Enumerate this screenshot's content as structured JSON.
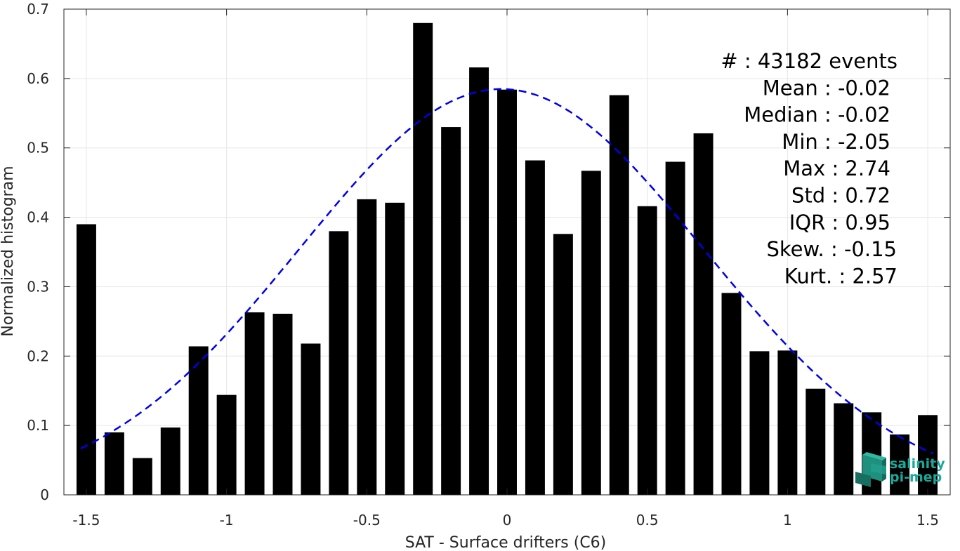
{
  "chart_data": {
    "type": "bar",
    "xlabel": "SAT - Surface drifters (C6)",
    "ylabel": "Normalized histogram",
    "xlim": [
      -1.58,
      1.58
    ],
    "ylim": [
      0,
      0.7
    ],
    "x_ticks": [
      -1.5,
      -1,
      -0.5,
      0,
      0.5,
      1,
      1.5
    ],
    "x_tick_labels": [
      "-1.5",
      "-1",
      "-0.5",
      "0",
      "0.5",
      "1",
      "1.5"
    ],
    "y_ticks": [
      0,
      0.1,
      0.2,
      0.3,
      0.4,
      0.5,
      0.6,
      0.7
    ],
    "y_tick_labels": [
      "0",
      "0.1",
      "0.2",
      "0.3",
      "0.4",
      "0.5",
      "0.6",
      "0.7"
    ],
    "grid": true,
    "bar_color": "#000000",
    "fit_color": "#0000ee",
    "x": [
      -1.5,
      -1.4,
      -1.3,
      -1.2,
      -1.1,
      -1.0,
      -0.9,
      -0.8,
      -0.7,
      -0.6,
      -0.5,
      -0.4,
      -0.3,
      -0.2,
      -0.1,
      0.0,
      0.1,
      0.2,
      0.3,
      0.4,
      0.5,
      0.6,
      0.7,
      0.8,
      0.9,
      1.0,
      1.1,
      1.2,
      1.3,
      1.4,
      1.5
    ],
    "values": [
      0.39,
      0.09,
      0.053,
      0.097,
      0.214,
      0.144,
      0.263,
      0.261,
      0.218,
      0.38,
      0.426,
      0.421,
      0.68,
      0.53,
      0.616,
      0.584,
      0.482,
      0.376,
      0.467,
      0.576,
      0.416,
      0.48,
      0.521,
      0.291,
      0.207,
      0.208,
      0.153,
      0.132,
      0.119,
      0.087,
      0.115
    ],
    "fit": {
      "type": "gaussian",
      "style": "dashed",
      "mean": -0.02,
      "std": 0.72,
      "xrange": [
        -1.52,
        1.52
      ]
    },
    "annotations": [
      {
        "label": "#  : 43182 events"
      },
      {
        "label": "Mean : -0.02"
      },
      {
        "label": "Median : -0.02"
      },
      {
        "label": "Min : -2.05"
      },
      {
        "label": "Max : 2.74"
      },
      {
        "label": "Std : 0.72"
      },
      {
        "label": "IQR : 0.95"
      },
      {
        "label": "Skew. : -0.15"
      },
      {
        "label": "Kurt. : 2.57"
      }
    ]
  },
  "logo": {
    "line1": "salinity",
    "line2": "pi-mep",
    "color": "#1aa89a"
  }
}
